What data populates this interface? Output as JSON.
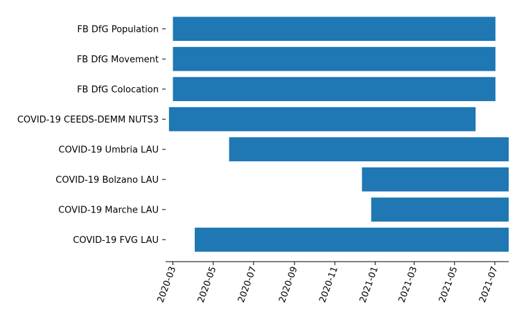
{
  "chart_data": {
    "type": "bar",
    "orientation": "horizontal",
    "title": "",
    "xlabel": "",
    "ylabel": "",
    "grid": false,
    "legend": "none",
    "bar_color": "#1f77b4",
    "x_axis": {
      "scale": "date",
      "range": [
        "2020-02-19",
        "2021-07-22"
      ],
      "ticks": [
        "2020-03-01",
        "2020-05-01",
        "2020-07-01",
        "2020-09-01",
        "2020-11-01",
        "2021-01-01",
        "2021-03-01",
        "2021-05-01",
        "2021-07-01"
      ],
      "tick_labels": [
        "2020-03",
        "2020-05",
        "2020-07",
        "2020-09",
        "2020-11",
        "2021-01",
        "2021-03",
        "2021-05",
        "2021-07"
      ]
    },
    "categories": [
      "FB DfG Population",
      "FB DfG Movement",
      "FB DfG Colocation",
      "COVID-19 CEEDS-DEMM NUTS3",
      "COVID-19 Umbria LAU",
      "COVID-19 Bolzano LAU",
      "COVID-19 Marche LAU",
      "COVID-19 FVG LAU"
    ],
    "series": [
      {
        "start": [
          "2020-03-01",
          "2020-03-01",
          "2020-03-01",
          "2020-02-24",
          "2020-05-25",
          "2020-12-12",
          "2020-12-26",
          "2020-04-03"
        ],
        "end": [
          "2021-07-02",
          "2021-07-02",
          "2021-07-02",
          "2021-06-02",
          "2021-07-22",
          "2021-07-22",
          "2021-07-22",
          "2021-07-22"
        ]
      }
    ]
  }
}
